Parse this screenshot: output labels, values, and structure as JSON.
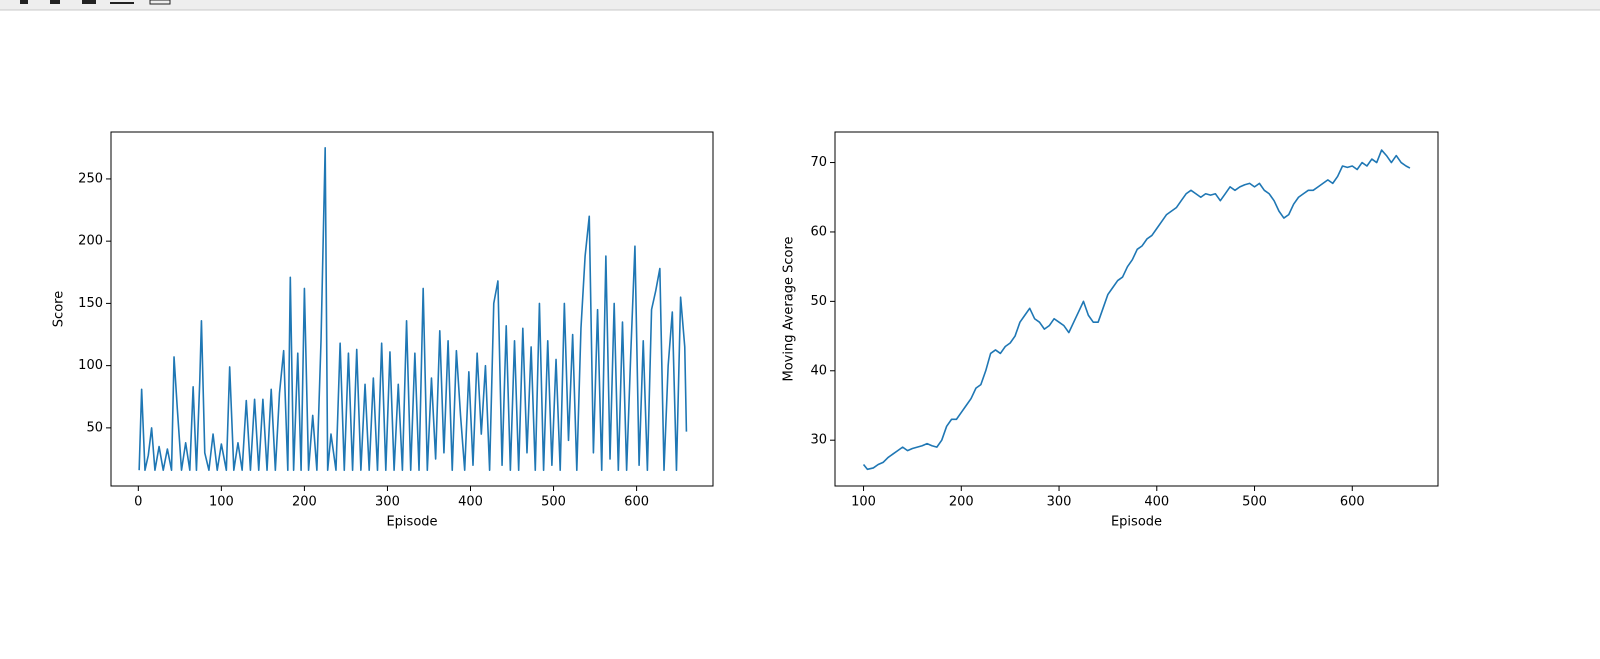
{
  "chart_data": [
    {
      "type": "line",
      "xlabel": "Episode",
      "ylabel": "Score",
      "color": "#1f77b4",
      "x": [
        1,
        4,
        8,
        12,
        16,
        20,
        25,
        30,
        35,
        40,
        43,
        47,
        52,
        57,
        62,
        66,
        70,
        74,
        76,
        80,
        85,
        90,
        95,
        100,
        106,
        110,
        115,
        120,
        125,
        130,
        135,
        140,
        145,
        150,
        155,
        160,
        165,
        170,
        175,
        180,
        183,
        187,
        192,
        196,
        200,
        205,
        210,
        215,
        220,
        225,
        228,
        232,
        238,
        243,
        248,
        253,
        258,
        263,
        268,
        273,
        278,
        283,
        288,
        293,
        298,
        303,
        308,
        313,
        318,
        323,
        328,
        333,
        338,
        343,
        348,
        353,
        358,
        363,
        368,
        373,
        378,
        383,
        388,
        393,
        398,
        403,
        408,
        413,
        418,
        423,
        428,
        433,
        438,
        443,
        448,
        453,
        458,
        463,
        468,
        473,
        478,
        483,
        488,
        493,
        498,
        503,
        508,
        513,
        518,
        523,
        528,
        533,
        538,
        543,
        548,
        553,
        558,
        563,
        568,
        573,
        578,
        583,
        588,
        593,
        598,
        603,
        608,
        613,
        618,
        623,
        628,
        633,
        638,
        643,
        648,
        653,
        658,
        660
      ],
      "values": [
        16,
        81,
        16,
        28,
        50,
        16,
        35,
        16,
        33,
        16,
        107,
        65,
        16,
        38,
        16,
        83,
        16,
        88,
        136,
        30,
        16,
        45,
        16,
        37,
        16,
        99,
        16,
        38,
        16,
        72,
        16,
        73,
        16,
        73,
        16,
        81,
        16,
        78,
        112,
        16,
        171,
        16,
        110,
        16,
        162,
        16,
        60,
        16,
        120,
        275,
        16,
        45,
        16,
        118,
        16,
        110,
        16,
        113,
        16,
        85,
        16,
        90,
        16,
        118,
        16,
        111,
        16,
        85,
        16,
        136,
        16,
        110,
        16,
        162,
        16,
        90,
        25,
        128,
        30,
        120,
        16,
        112,
        60,
        16,
        95,
        20,
        110,
        45,
        100,
        16,
        150,
        168,
        20,
        132,
        16,
        120,
        16,
        130,
        30,
        115,
        16,
        150,
        16,
        120,
        20,
        105,
        16,
        150,
        40,
        125,
        16,
        130,
        188,
        220,
        30,
        145,
        16,
        188,
        25,
        150,
        16,
        135,
        16,
        110,
        196,
        20,
        120,
        16,
        145,
        160,
        178,
        16,
        100,
        143,
        16,
        155,
        115,
        47
      ],
      "xlim": [
        -32.9,
        692
      ],
      "ylim": [
        3.3,
        287.7
      ],
      "xticks": [
        0,
        100,
        200,
        300,
        400,
        500,
        600
      ],
      "yticks": [
        50,
        100,
        150,
        200,
        250
      ]
    },
    {
      "type": "line",
      "xlabel": "Episode",
      "ylabel": "Moving Average Score",
      "color": "#1f77b4",
      "x": [
        100,
        104,
        110,
        115,
        120,
        125,
        130,
        135,
        140,
        145,
        150,
        155,
        160,
        165,
        170,
        175,
        180,
        185,
        190,
        195,
        200,
        205,
        210,
        215,
        220,
        225,
        230,
        235,
        240,
        245,
        250,
        255,
        260,
        265,
        270,
        275,
        280,
        285,
        290,
        295,
        300,
        305,
        310,
        315,
        320,
        325,
        330,
        335,
        340,
        345,
        350,
        355,
        360,
        365,
        370,
        375,
        380,
        385,
        390,
        395,
        400,
        405,
        410,
        415,
        420,
        425,
        430,
        435,
        440,
        445,
        450,
        455,
        460,
        465,
        470,
        475,
        480,
        485,
        490,
        495,
        500,
        505,
        510,
        515,
        520,
        525,
        530,
        535,
        540,
        545,
        550,
        555,
        560,
        565,
        570,
        575,
        580,
        585,
        590,
        595,
        600,
        605,
        610,
        615,
        620,
        625,
        630,
        635,
        640,
        645,
        650,
        655,
        659
      ],
      "values": [
        26.5,
        25.8,
        26,
        26.5,
        26.8,
        27.5,
        28,
        28.5,
        29,
        28.5,
        28.8,
        29,
        29.2,
        29.5,
        29.2,
        29,
        30,
        32,
        33,
        33,
        34,
        35,
        36,
        37.5,
        38,
        40,
        42.5,
        43,
        42.5,
        43.5,
        44,
        45,
        47,
        48,
        49,
        47.5,
        47,
        46,
        46.5,
        47.5,
        47,
        46.5,
        45.5,
        47,
        48.5,
        50,
        48,
        47,
        47,
        49,
        51,
        52,
        53,
        53.5,
        55,
        56,
        57.5,
        58,
        59,
        59.5,
        60.5,
        61.5,
        62.5,
        63,
        63.5,
        64.5,
        65.5,
        66,
        65.5,
        65,
        65.5,
        65.3,
        65.5,
        64.5,
        65.5,
        66.5,
        66,
        66.5,
        66.8,
        67,
        66.5,
        67,
        66,
        65.5,
        64.5,
        63,
        62,
        62.5,
        64,
        65,
        65.5,
        66,
        66,
        66.5,
        67,
        67.5,
        67,
        68,
        69.5,
        69.3,
        69.5,
        69,
        70,
        69.5,
        70.5,
        70,
        71.8,
        71,
        70,
        71,
        70,
        69.5,
        69.2
      ],
      "xlim": [
        70.8,
        687.7
      ],
      "ylim": [
        23.4,
        74.4
      ],
      "xticks": [
        100,
        200,
        300,
        400,
        500,
        600
      ],
      "yticks": [
        30,
        40,
        50,
        60,
        70
      ]
    }
  ]
}
